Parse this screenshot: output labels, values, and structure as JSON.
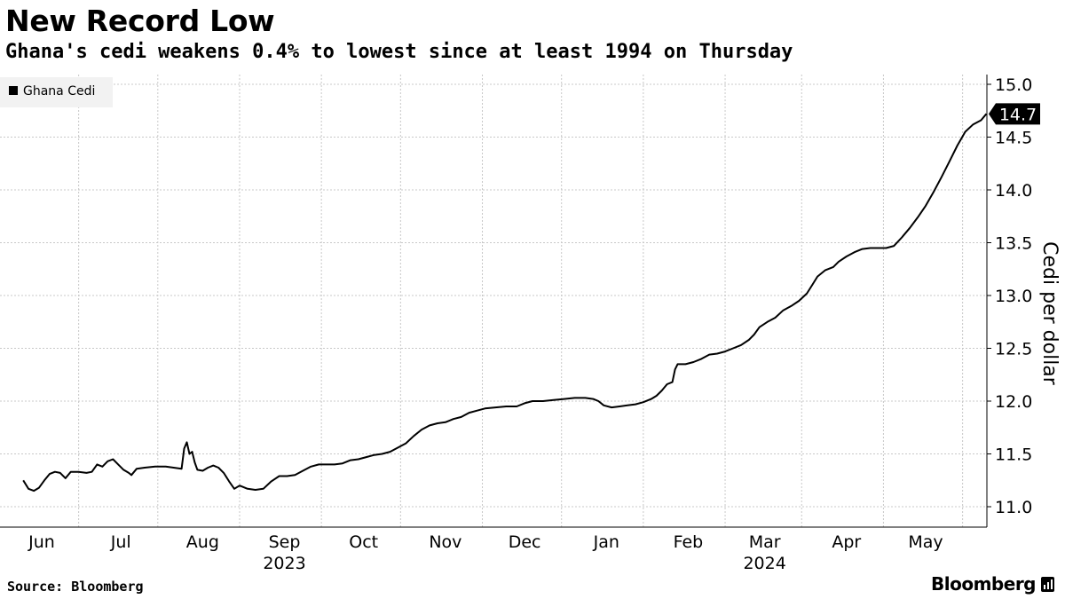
{
  "title": "New Record Low",
  "subtitle": "Ghana's cedi weakens 0.4% to lowest since at least 1994 on Thursday",
  "source": "Source: Bloomberg",
  "brand": "Bloomberg",
  "brand_icon": "bloomberg-terminal-icon",
  "colors": {
    "line": "#000000",
    "grid": "#c8c8c8",
    "legend_bg": "#f2f2f2",
    "badge_bg": "#000000",
    "badge_text": "#ffffff"
  },
  "chart_data": {
    "type": "line",
    "title": "New Record Low",
    "subtitle": "Ghana's cedi weakens 0.4% to lowest since at least 1994 on Thursday",
    "xlabel": "",
    "ylabel": "Cedi per dollar",
    "ylim": [
      10.8,
      15.1
    ],
    "yticks": [
      11.0,
      11.5,
      12.0,
      12.5,
      13.0,
      13.5,
      14.0,
      14.5,
      15.0
    ],
    "ytick_labels": [
      "11.0",
      "11.5",
      "12.0",
      "12.5",
      "13.0",
      "13.5",
      "14.0",
      "14.5",
      "15.0"
    ],
    "x_range": [
      "2023-05-25",
      "2024-05-31"
    ],
    "month_ticks": [
      {
        "label": "Jun",
        "date": "2023-06-01"
      },
      {
        "label": "Jul",
        "date": "2023-07-01"
      },
      {
        "label": "Aug",
        "date": "2023-08-01"
      },
      {
        "label": "Sep",
        "date": "2023-09-01"
      },
      {
        "label": "Oct",
        "date": "2023-10-01"
      },
      {
        "label": "Nov",
        "date": "2023-11-01"
      },
      {
        "label": "Dec",
        "date": "2023-12-01"
      },
      {
        "label": "Jan",
        "date": "2024-01-01"
      },
      {
        "label": "Feb",
        "date": "2024-02-01"
      },
      {
        "label": "Mar",
        "date": "2024-03-01"
      },
      {
        "label": "Apr",
        "date": "2024-04-01"
      },
      {
        "label": "May",
        "date": "2024-05-01"
      }
    ],
    "year_labels": [
      {
        "label": "2023",
        "date": "2023-09-01"
      },
      {
        "label": "2024",
        "date": "2024-03-01"
      }
    ],
    "grid": true,
    "legend": {
      "position": "top-left",
      "entries": [
        "Ghana Cedi"
      ]
    },
    "last_value_label": "14.7",
    "last_value": 14.72,
    "series": [
      {
        "name": "Ghana Cedi",
        "points": [
          [
            "2023-05-25",
            11.25
          ],
          [
            "2023-05-27",
            11.17
          ],
          [
            "2023-05-29",
            11.15
          ],
          [
            "2023-05-31",
            11.18
          ],
          [
            "2023-06-02",
            11.25
          ],
          [
            "2023-06-04",
            11.31
          ],
          [
            "2023-06-06",
            11.33
          ],
          [
            "2023-06-08",
            11.32
          ],
          [
            "2023-06-10",
            11.27
          ],
          [
            "2023-06-12",
            11.33
          ],
          [
            "2023-06-15",
            11.33
          ],
          [
            "2023-06-18",
            11.32
          ],
          [
            "2023-06-20",
            11.33
          ],
          [
            "2023-06-22",
            11.4
          ],
          [
            "2023-06-24",
            11.38
          ],
          [
            "2023-06-26",
            11.43
          ],
          [
            "2023-06-28",
            11.45
          ],
          [
            "2023-06-30",
            11.4
          ],
          [
            "2023-07-02",
            11.35
          ],
          [
            "2023-07-04",
            11.32
          ],
          [
            "2023-07-05",
            11.3
          ],
          [
            "2023-07-07",
            11.36
          ],
          [
            "2023-07-10",
            11.37
          ],
          [
            "2023-07-14",
            11.38
          ],
          [
            "2023-07-18",
            11.38
          ],
          [
            "2023-07-21",
            11.37
          ],
          [
            "2023-07-24",
            11.36
          ],
          [
            "2023-07-25",
            11.55
          ],
          [
            "2023-07-26",
            11.61
          ],
          [
            "2023-07-27",
            11.5
          ],
          [
            "2023-07-28",
            11.52
          ],
          [
            "2023-07-29",
            11.42
          ],
          [
            "2023-07-30",
            11.35
          ],
          [
            "2023-08-01",
            11.34
          ],
          [
            "2023-08-03",
            11.37
          ],
          [
            "2023-08-05",
            11.39
          ],
          [
            "2023-08-07",
            11.37
          ],
          [
            "2023-08-09",
            11.32
          ],
          [
            "2023-08-11",
            11.24
          ],
          [
            "2023-08-13",
            11.17
          ],
          [
            "2023-08-15",
            11.2
          ],
          [
            "2023-08-18",
            11.17
          ],
          [
            "2023-08-21",
            11.16
          ],
          [
            "2023-08-24",
            11.17
          ],
          [
            "2023-08-27",
            11.24
          ],
          [
            "2023-08-30",
            11.29
          ],
          [
            "2023-09-02",
            11.29
          ],
          [
            "2023-09-05",
            11.3
          ],
          [
            "2023-09-08",
            11.34
          ],
          [
            "2023-09-11",
            11.38
          ],
          [
            "2023-09-14",
            11.4
          ],
          [
            "2023-09-17",
            11.4
          ],
          [
            "2023-09-20",
            11.4
          ],
          [
            "2023-09-23",
            11.41
          ],
          [
            "2023-09-26",
            11.44
          ],
          [
            "2023-09-29",
            11.45
          ],
          [
            "2023-10-02",
            11.47
          ],
          [
            "2023-10-05",
            11.49
          ],
          [
            "2023-10-08",
            11.5
          ],
          [
            "2023-10-11",
            11.52
          ],
          [
            "2023-10-14",
            11.56
          ],
          [
            "2023-10-17",
            11.6
          ],
          [
            "2023-10-20",
            11.67
          ],
          [
            "2023-10-23",
            11.73
          ],
          [
            "2023-10-26",
            11.77
          ],
          [
            "2023-10-29",
            11.79
          ],
          [
            "2023-11-01",
            11.8
          ],
          [
            "2023-11-04",
            11.83
          ],
          [
            "2023-11-07",
            11.85
          ],
          [
            "2023-11-10",
            11.89
          ],
          [
            "2023-11-13",
            11.91
          ],
          [
            "2023-11-16",
            11.93
          ],
          [
            "2023-11-20",
            11.94
          ],
          [
            "2023-11-24",
            11.95
          ],
          [
            "2023-11-28",
            11.95
          ],
          [
            "2023-12-01",
            11.98
          ],
          [
            "2023-12-04",
            12.0
          ],
          [
            "2023-12-08",
            12.0
          ],
          [
            "2023-12-12",
            12.01
          ],
          [
            "2023-12-16",
            12.02
          ],
          [
            "2023-12-20",
            12.03
          ],
          [
            "2023-12-24",
            12.03
          ],
          [
            "2023-12-27",
            12.02
          ],
          [
            "2023-12-29",
            12.0
          ],
          [
            "2023-12-31",
            11.96
          ],
          [
            "2024-01-03",
            11.94
          ],
          [
            "2024-01-06",
            11.95
          ],
          [
            "2024-01-09",
            11.96
          ],
          [
            "2024-01-12",
            11.97
          ],
          [
            "2024-01-15",
            11.99
          ],
          [
            "2024-01-18",
            12.02
          ],
          [
            "2024-01-20",
            12.05
          ],
          [
            "2024-01-22",
            12.1
          ],
          [
            "2024-01-24",
            12.16
          ],
          [
            "2024-01-26",
            12.18
          ],
          [
            "2024-01-27",
            12.3
          ],
          [
            "2024-01-28",
            12.35
          ],
          [
            "2024-01-31",
            12.35
          ],
          [
            "2024-02-03",
            12.37
          ],
          [
            "2024-02-06",
            12.4
          ],
          [
            "2024-02-09",
            12.44
          ],
          [
            "2024-02-12",
            12.45
          ],
          [
            "2024-02-15",
            12.47
          ],
          [
            "2024-02-18",
            12.5
          ],
          [
            "2024-02-21",
            12.53
          ],
          [
            "2024-02-24",
            12.58
          ],
          [
            "2024-02-26",
            12.63
          ],
          [
            "2024-02-28",
            12.7
          ],
          [
            "2024-03-02",
            12.75
          ],
          [
            "2024-03-05",
            12.79
          ],
          [
            "2024-03-08",
            12.86
          ],
          [
            "2024-03-11",
            12.9
          ],
          [
            "2024-03-14",
            12.95
          ],
          [
            "2024-03-17",
            13.02
          ],
          [
            "2024-03-19",
            13.1
          ],
          [
            "2024-03-21",
            13.18
          ],
          [
            "2024-03-24",
            13.24
          ],
          [
            "2024-03-27",
            13.27
          ],
          [
            "2024-03-29",
            13.32
          ],
          [
            "2024-04-01",
            13.37
          ],
          [
            "2024-04-04",
            13.41
          ],
          [
            "2024-04-07",
            13.44
          ],
          [
            "2024-04-10",
            13.45
          ],
          [
            "2024-04-13",
            13.45
          ],
          [
            "2024-04-16",
            13.45
          ],
          [
            "2024-04-19",
            13.47
          ],
          [
            "2024-04-22",
            13.55
          ],
          [
            "2024-04-25",
            13.64
          ],
          [
            "2024-04-28",
            13.74
          ],
          [
            "2024-05-01",
            13.85
          ],
          [
            "2024-05-04",
            13.98
          ],
          [
            "2024-05-07",
            14.12
          ],
          [
            "2024-05-10",
            14.27
          ],
          [
            "2024-05-13",
            14.42
          ],
          [
            "2024-05-16",
            14.55
          ],
          [
            "2024-05-19",
            14.62
          ],
          [
            "2024-05-22",
            14.66
          ],
          [
            "2024-05-24",
            14.72
          ]
        ]
      }
    ]
  }
}
